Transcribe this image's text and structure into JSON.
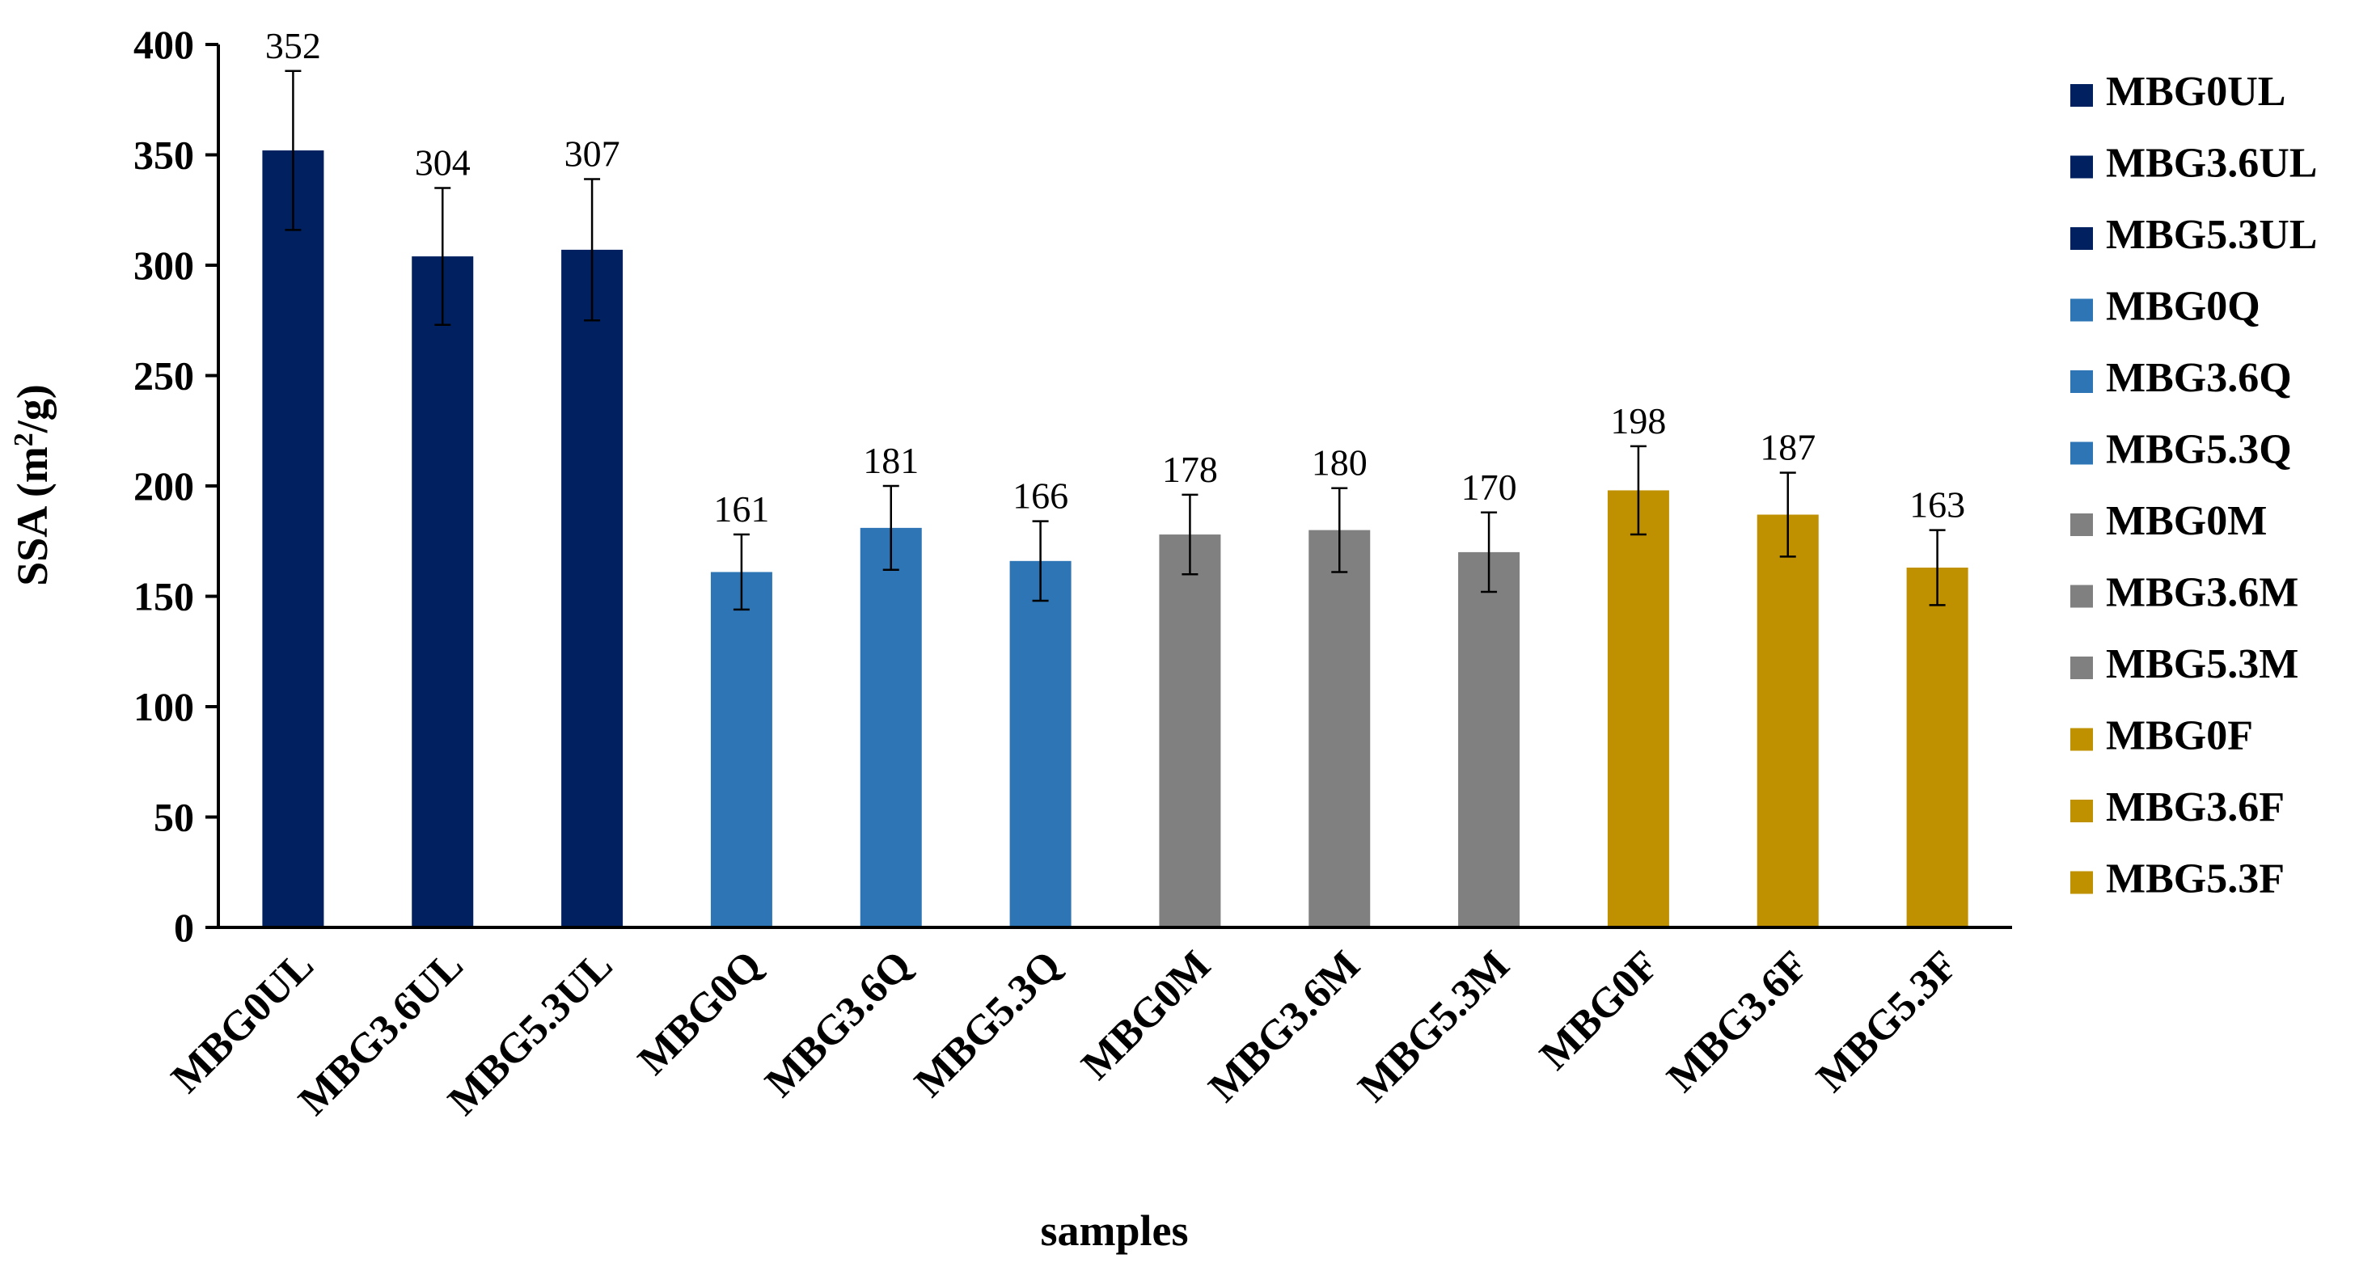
{
  "chart_data": {
    "type": "bar",
    "title": "",
    "xlabel": "samples",
    "ylabel_main": "SSA (m",
    "ylabel_sup": "2",
    "ylabel_end": "/g)",
    "ylim": [
      0,
      400
    ],
    "yticks": [
      0,
      50,
      100,
      150,
      200,
      250,
      300,
      350,
      400
    ],
    "ytick_labels": [
      "0",
      "50",
      "100",
      "150",
      "200",
      "250",
      "300",
      "350",
      "400"
    ],
    "grid": false,
    "legend_position": "right",
    "categories": [
      "MBG0UL",
      "MBG3.6UL",
      "MBG5.3UL",
      "MBG0Q",
      "MBG3.6Q",
      "MBG5.3Q",
      "MBG0M",
      "MBG3.6M",
      "MBG5.3M",
      "MBG0F",
      "MBG3.6F",
      "MBG5.3F"
    ],
    "values": [
      352,
      304,
      307,
      161,
      181,
      166,
      178,
      180,
      170,
      198,
      187,
      163
    ],
    "value_labels": [
      "352",
      "304",
      "307",
      "161",
      "181",
      "166",
      "178",
      "180",
      "170",
      "198",
      "187",
      "163"
    ],
    "errors": [
      36,
      31,
      32,
      17,
      19,
      18,
      18,
      19,
      18,
      20,
      19,
      17
    ],
    "colors": [
      "#002060",
      "#002060",
      "#002060",
      "#2E75B6",
      "#2E75B6",
      "#2E75B6",
      "#808080",
      "#808080",
      "#808080",
      "#BF9000",
      "#BF9000",
      "#BF9000"
    ],
    "legend": [
      "MBG0UL",
      "MBG3.6UL",
      "MBG5.3UL",
      "MBG0Q",
      "MBG3.6Q",
      "MBG5.3Q",
      "MBG0M",
      "MBG3.6M",
      "MBG5.3M",
      "MBG0F",
      "MBG3.6F",
      "MBG5.3F"
    ]
  }
}
